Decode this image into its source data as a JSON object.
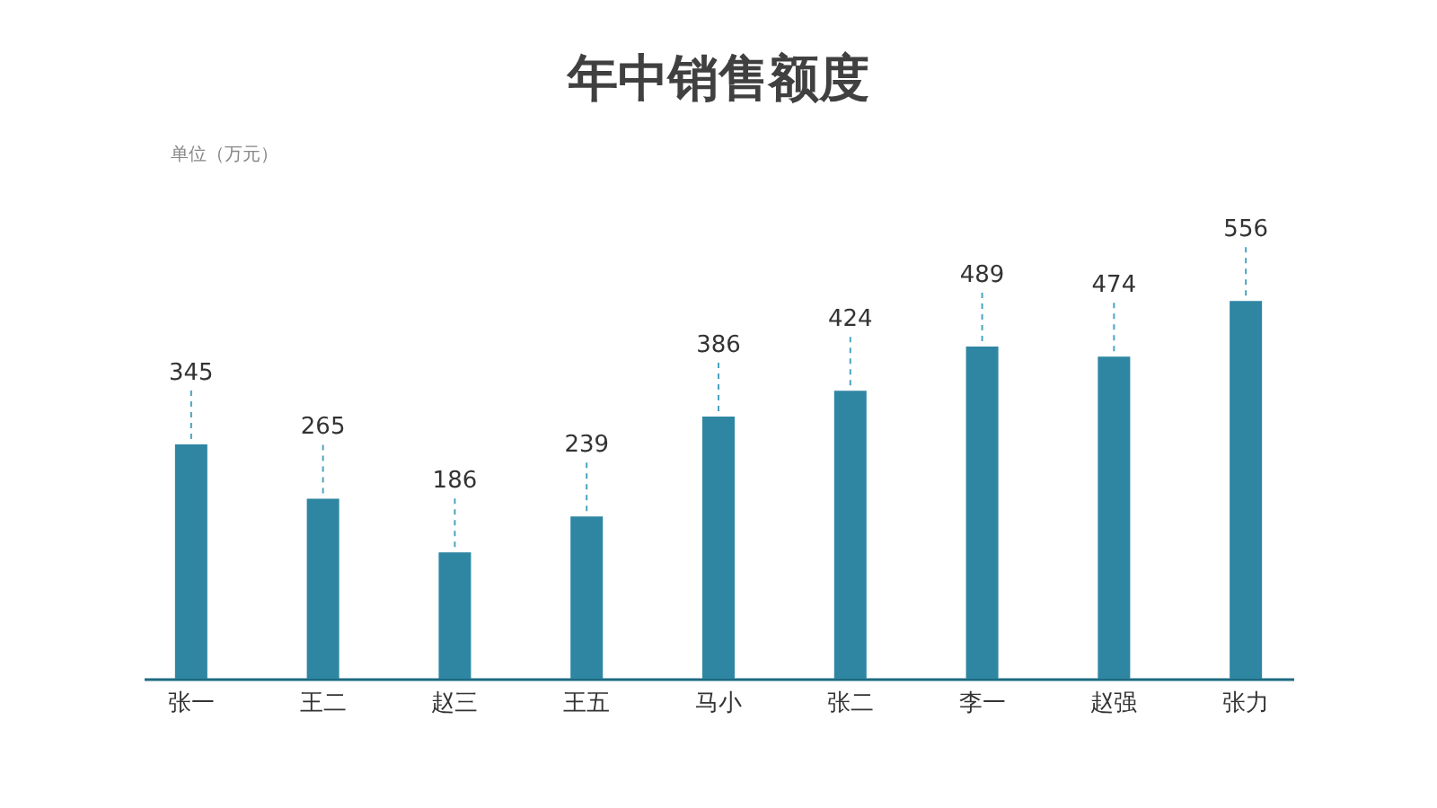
{
  "chart_data": {
    "type": "bar",
    "title": "年中销售额度",
    "annotations": [
      "单位（万元）"
    ],
    "categories": [
      "张一",
      "王二",
      "赵三",
      "王五",
      "马小",
      "张二",
      "李一",
      "赵强",
      "张力"
    ],
    "values": [
      345,
      265,
      186,
      239,
      386,
      424,
      489,
      474,
      556
    ],
    "color": "#2e86a3",
    "tick_labels": "x",
    "data_labels": true,
    "grid": false
  }
}
